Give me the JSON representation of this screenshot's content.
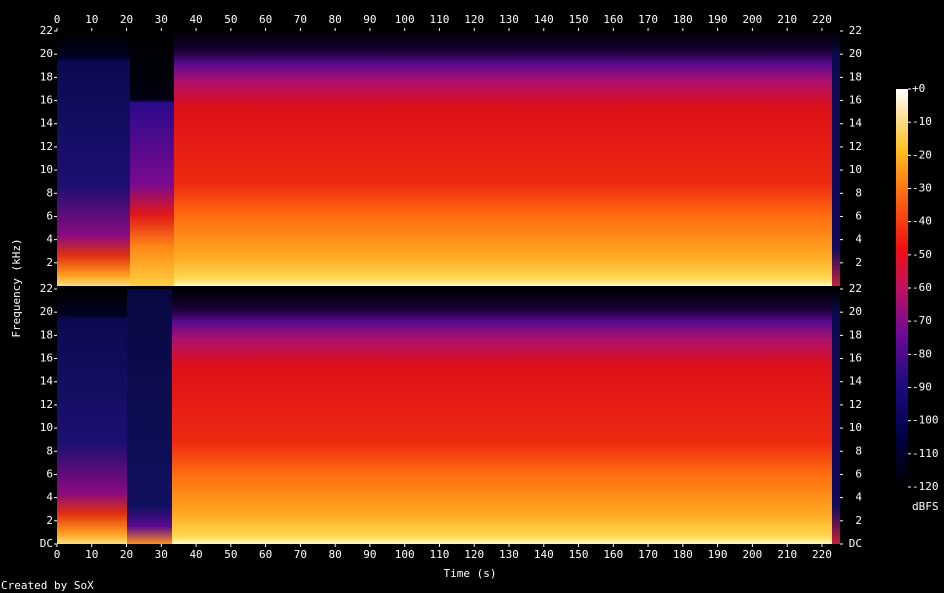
{
  "chart_data": {
    "type": "spectrogram",
    "x_label": "Time (s)",
    "y_label": "Frequency (kHz)",
    "xlim": [
      0,
      225.2
    ],
    "xticks": [
      0,
      10,
      20,
      30,
      40,
      50,
      60,
      70,
      80,
      90,
      100,
      110,
      120,
      130,
      140,
      150,
      160,
      170,
      180,
      190,
      200,
      210,
      220
    ],
    "panels": [
      {
        "ylim": [
          0,
          22
        ],
        "yticks": [
          2,
          4,
          6,
          8,
          10,
          12,
          14,
          16,
          18,
          20,
          22
        ]
      },
      {
        "ylim": [
          0,
          22
        ],
        "yticks": [
          {
            "value": 0,
            "label": "DC"
          },
          2,
          4,
          6,
          8,
          10,
          12,
          14,
          16,
          18,
          20,
          22
        ]
      }
    ],
    "colorbar": {
      "label": "dBFS",
      "lim": [
        -120,
        0
      ],
      "ticks": [
        {
          "value": 0,
          "label": "+0"
        },
        -10,
        -20,
        -30,
        -40,
        -50,
        -60,
        -70,
        -80,
        -90,
        -100,
        -110,
        -120
      ]
    }
  },
  "footer": "Created by SoX"
}
